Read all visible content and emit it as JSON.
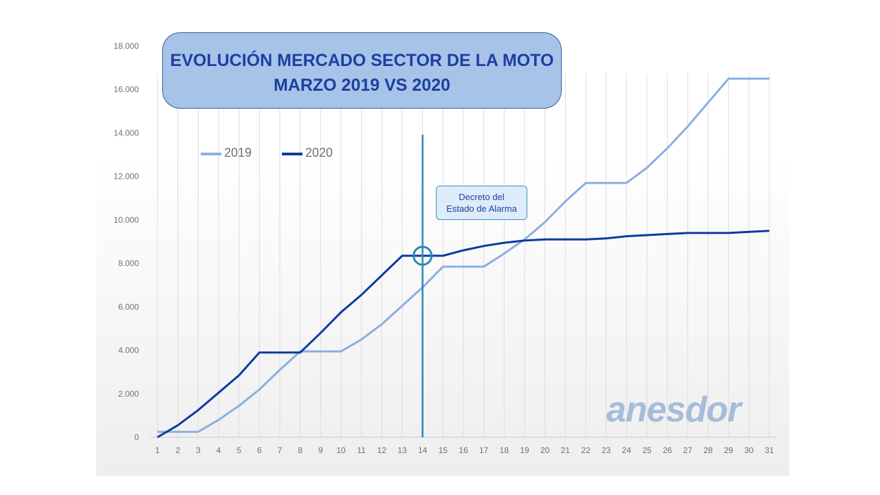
{
  "chart_data": {
    "type": "line",
    "title": "EVOLUCIÓN MERCADO SECTOR DE LA MOTO",
    "subtitle": "MARZO 2019 VS 2020",
    "xlabel": "",
    "ylabel": "",
    "x": [
      1,
      2,
      3,
      4,
      5,
      6,
      7,
      8,
      9,
      10,
      11,
      12,
      13,
      14,
      15,
      16,
      17,
      18,
      19,
      20,
      21,
      22,
      23,
      24,
      25,
      26,
      27,
      28,
      29,
      30,
      31
    ],
    "ylim": [
      0,
      18000
    ],
    "yticks": [
      0,
      2000,
      4000,
      6000,
      8000,
      10000,
      12000,
      14000,
      16000,
      18000
    ],
    "ytick_labels": [
      "0",
      "2.000",
      "4.000",
      "6.000",
      "8.000",
      "10.000",
      "12.000",
      "14.000",
      "16.000",
      "18.000"
    ],
    "grid": "vertical",
    "legend_position": "top-left",
    "series": [
      {
        "name": "2019",
        "color": "#8aaee0",
        "values": [
          250,
          250,
          250,
          800,
          1450,
          2200,
          3100,
          3950,
          3950,
          3950,
          4500,
          5200,
          6050,
          6900,
          7850,
          7850,
          7850,
          8450,
          9100,
          9900,
          10850,
          11700,
          11700,
          11700,
          12400,
          13300,
          14300,
          15400,
          16500,
          16500,
          16500
        ]
      },
      {
        "name": "2020",
        "color": "#0b3aa0",
        "values": [
          0,
          550,
          1250,
          2050,
          2850,
          3900,
          3900,
          3900,
          4800,
          5750,
          6550,
          7450,
          8350,
          8350,
          8350,
          8600,
          8800,
          8950,
          9050,
          9100,
          9100,
          9100,
          9150,
          9250,
          9300,
          9350,
          9400,
          9400,
          9400,
          9450,
          9500
        ]
      }
    ],
    "annotations": [
      {
        "text_line1": "Decreto del",
        "text_line2": "Estado de Alarma",
        "x": 14,
        "y": 8350
      }
    ]
  },
  "logo_text": "anesdor"
}
